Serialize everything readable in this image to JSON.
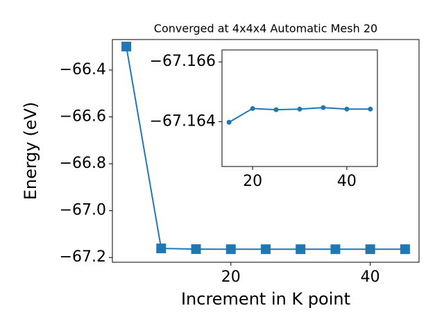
{
  "chart_data": [
    {
      "type": "line",
      "title": "Converged at 4x4x4 Automatic Mesh 20",
      "x_label": "Increment in K point",
      "y_label": "Energy (eV)",
      "x": [
        5,
        10,
        15,
        20,
        25,
        30,
        35,
        40,
        45
      ],
      "series": [
        {
          "color": "#1f77b4",
          "marker": "square",
          "values": [
            -66.3,
            -67.161,
            -67.164,
            -67.1644,
            -67.1644,
            -67.1644,
            -67.1645,
            -67.1644,
            -67.1644
          ]
        }
      ],
      "xlim": [
        3,
        47
      ],
      "ylim": [
        -67.22,
        -66.27
      ],
      "xticks": [
        20,
        40
      ],
      "yticks": [
        {
          "value": -67.2,
          "label": "−67.2"
        },
        {
          "value": -67.0,
          "label": "−67.0"
        },
        {
          "value": -66.8,
          "label": "−66.8"
        },
        {
          "value": -66.6,
          "label": "−66.6"
        },
        {
          "value": -66.4,
          "label": "−66.4"
        }
      ]
    },
    {
      "type": "line",
      "x": [
        15,
        20,
        25,
        30,
        35,
        40,
        45
      ],
      "series": [
        {
          "color": "#1f77b4",
          "marker": "circle",
          "values": [
            -67.16398,
            -67.16444,
            -67.1644,
            -67.16442,
            -67.16447,
            -67.16442,
            -67.16442
          ]
        }
      ],
      "xlim": [
        13.5,
        46.5
      ],
      "ylim": [
        -67.1625,
        -67.1664
      ],
      "xticks": [
        20,
        40
      ],
      "yticks": [
        {
          "value": -67.164,
          "label": "−67.164"
        },
        {
          "value": -67.166,
          "label": "−67.166"
        }
      ]
    }
  ]
}
